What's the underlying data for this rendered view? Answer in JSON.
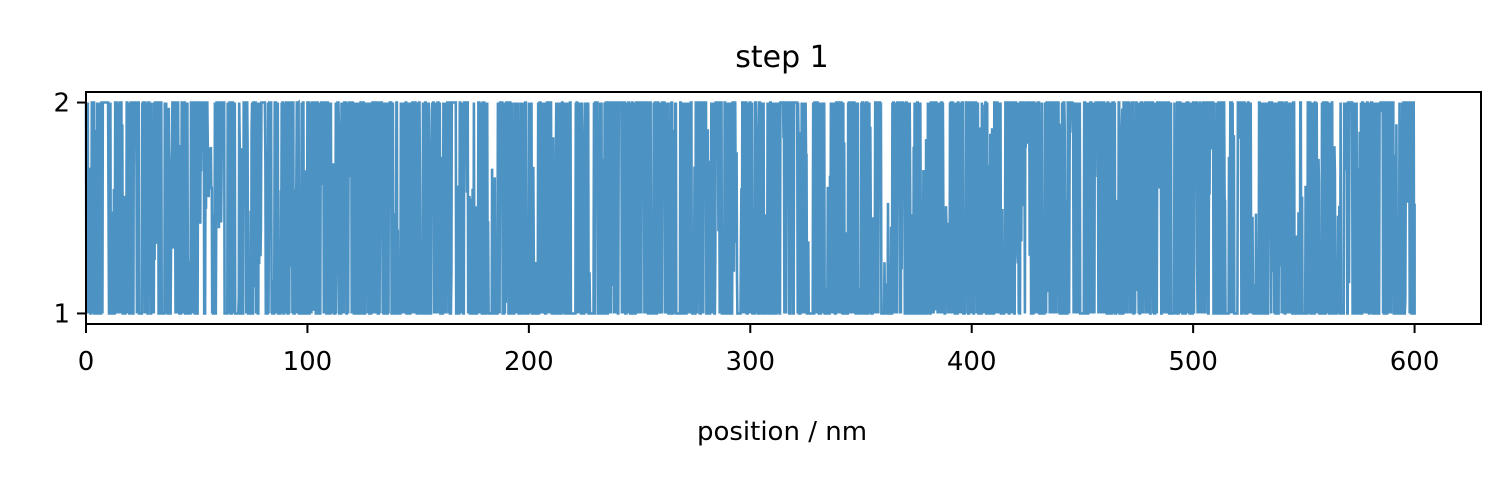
{
  "chart_data": {
    "type": "line",
    "title": "step 1",
    "xlabel": "position / nm",
    "ylabel": "",
    "xlim": [
      0,
      630
    ],
    "ylim": [
      0.95,
      2.05
    ],
    "xticks": [
      0,
      100,
      200,
      300,
      400,
      500,
      600
    ],
    "yticks": [
      1,
      2
    ],
    "grid": false,
    "legend": "none",
    "series_color": "#1f77b4",
    "series_alpha": 0.8,
    "series_description_x_range": [
      0,
      600
    ],
    "series_levels": [
      1,
      2
    ],
    "sample_spacing_nm": 0.2,
    "gaps_at_level_1_nm": [
      [
        8,
        10
      ],
      [
        20,
        21
      ],
      [
        28,
        29
      ],
      [
        31,
        32
      ],
      [
        51,
        52
      ],
      [
        54,
        57
      ],
      [
        59,
        62
      ],
      [
        78,
        80
      ],
      [
        92,
        93
      ],
      [
        106,
        107
      ],
      [
        119,
        120
      ],
      [
        137,
        138
      ],
      [
        166,
        167
      ],
      [
        171,
        172
      ],
      [
        230,
        231
      ],
      [
        237,
        238
      ],
      [
        260,
        261
      ],
      [
        284,
        286
      ],
      [
        293,
        294
      ],
      [
        314,
        315
      ],
      [
        388,
        389
      ],
      [
        401,
        402
      ],
      [
        424,
        426
      ],
      [
        444,
        445
      ],
      [
        470,
        471
      ],
      [
        507,
        509
      ],
      [
        520,
        521
      ],
      [
        534,
        535
      ],
      [
        570,
        571
      ]
    ],
    "gaps_at_level_2_nm": [
      [
        1,
        2
      ],
      [
        11,
        13
      ],
      [
        16,
        18
      ],
      [
        24,
        25
      ],
      [
        34,
        35
      ],
      [
        46,
        47
      ],
      [
        55,
        58
      ],
      [
        73,
        75
      ],
      [
        81,
        82
      ],
      [
        94,
        95
      ],
      [
        99,
        100
      ],
      [
        111,
        112
      ],
      [
        141,
        142
      ],
      [
        160,
        161
      ],
      [
        167,
        168
      ],
      [
        173,
        175
      ],
      [
        182,
        185
      ],
      [
        202,
        204
      ],
      [
        207,
        208
      ],
      [
        210,
        212
      ],
      [
        219,
        221
      ],
      [
        227,
        229
      ],
      [
        231,
        232
      ],
      [
        267,
        268
      ],
      [
        280,
        282
      ],
      [
        294,
        296
      ],
      [
        306,
        307
      ],
      [
        325,
        328
      ],
      [
        334,
        336
      ],
      [
        342,
        344
      ],
      [
        354,
        356
      ],
      [
        359,
        364
      ],
      [
        372,
        374
      ],
      [
        377,
        380
      ],
      [
        387,
        390
      ],
      [
        403,
        404
      ],
      [
        408,
        410
      ],
      [
        414,
        415
      ],
      [
        449,
        450
      ],
      [
        495,
        496
      ],
      [
        514,
        516
      ],
      [
        518,
        520
      ],
      [
        526,
        528
      ],
      [
        546,
        548
      ],
      [
        556,
        558
      ],
      [
        563,
        566
      ],
      [
        574,
        575
      ],
      [
        591,
        593
      ]
    ]
  }
}
